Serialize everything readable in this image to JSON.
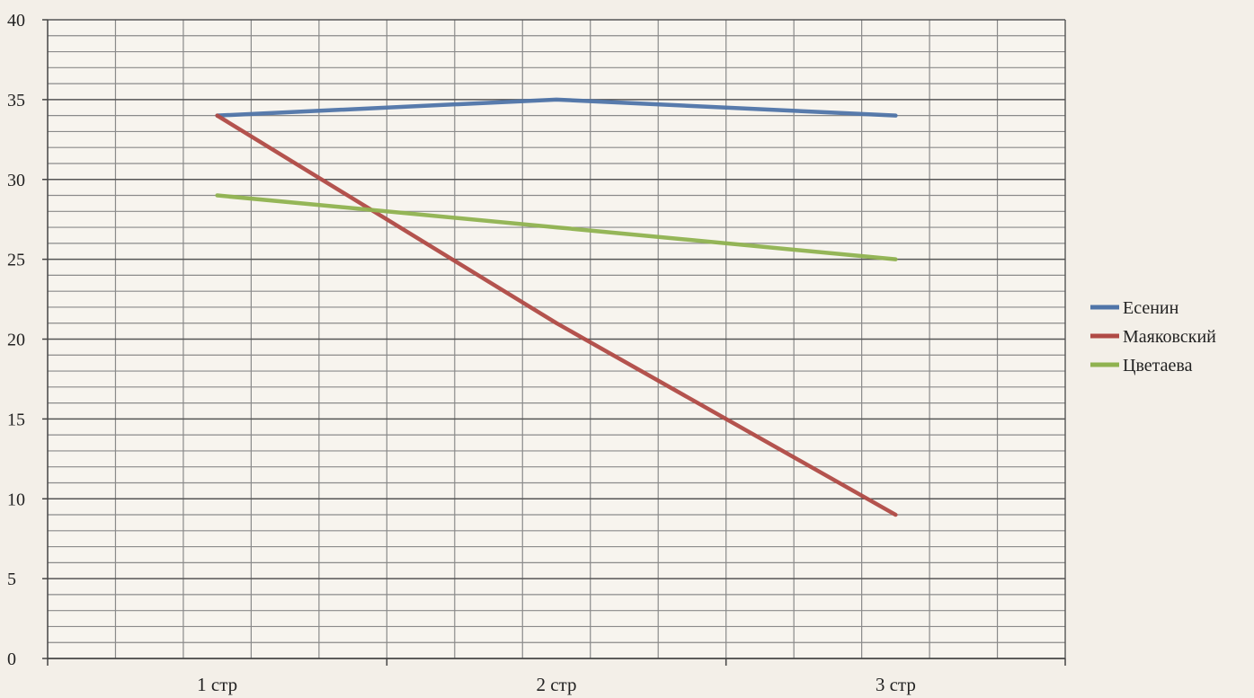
{
  "chart_data": {
    "type": "line",
    "categories": [
      "1 стр",
      "2 стр",
      "3 стр"
    ],
    "series": [
      {
        "name": "Есенин",
        "values": [
          34,
          35,
          34
        ],
        "color": "#4f74a8"
      },
      {
        "name": "Маяковский",
        "values": [
          34,
          21,
          9
        ],
        "color": "#b04a45"
      },
      {
        "name": "Цветаева",
        "values": [
          29,
          27,
          25
        ],
        "color": "#8fb24f"
      }
    ],
    "ylim": [
      0,
      40
    ],
    "yticks": [
      0,
      5,
      10,
      15,
      20,
      25,
      30,
      35,
      40
    ],
    "major_grid_step": 5,
    "minor_grid_step": 1,
    "grid": true,
    "legend_position": "right",
    "title": "",
    "xlabel": "",
    "ylabel": ""
  }
}
